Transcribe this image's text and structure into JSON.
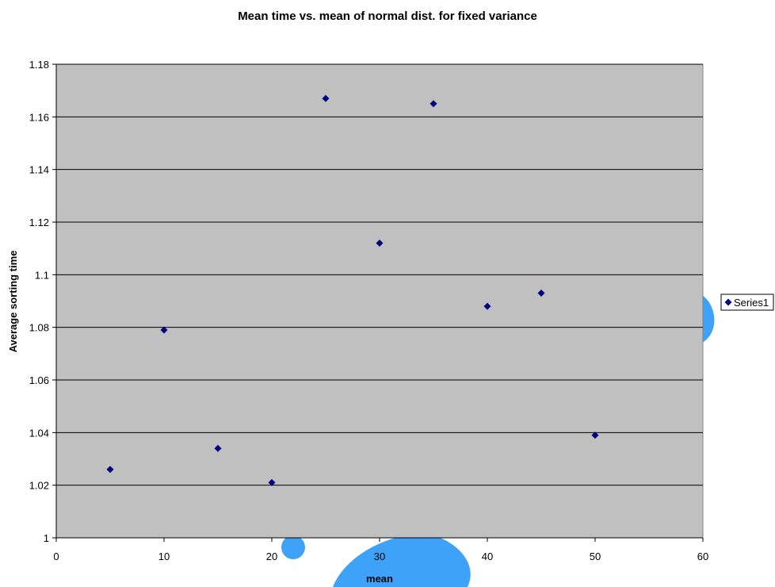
{
  "chart_data": {
    "type": "scatter",
    "title": "Mean time vs. mean of normal dist. for fixed variance",
    "xlabel": "mean",
    "ylabel": "Average sorting time",
    "xlim": [
      0,
      60
    ],
    "ylim": [
      1,
      1.18
    ],
    "x_ticks": [
      0,
      10,
      20,
      30,
      40,
      50,
      60
    ],
    "y_ticks": [
      1,
      1.02,
      1.04,
      1.06,
      1.08,
      1.1,
      1.12,
      1.14,
      1.16,
      1.18
    ],
    "grid": true,
    "legend_position": "right",
    "series": [
      {
        "name": "Series1",
        "color": "#000080",
        "marker": "diamond",
        "points": [
          {
            "x": 5,
            "y": 1.026
          },
          {
            "x": 10,
            "y": 1.079
          },
          {
            "x": 15,
            "y": 1.034
          },
          {
            "x": 20,
            "y": 1.021
          },
          {
            "x": 25,
            "y": 1.167
          },
          {
            "x": 30,
            "y": 1.112
          },
          {
            "x": 35,
            "y": 1.165
          },
          {
            "x": 40,
            "y": 1.088
          },
          {
            "x": 45,
            "y": 1.093
          },
          {
            "x": 50,
            "y": 1.039
          }
        ]
      }
    ],
    "plot_background": "#c0c0c0",
    "watermark_color": "#3da2f8"
  }
}
